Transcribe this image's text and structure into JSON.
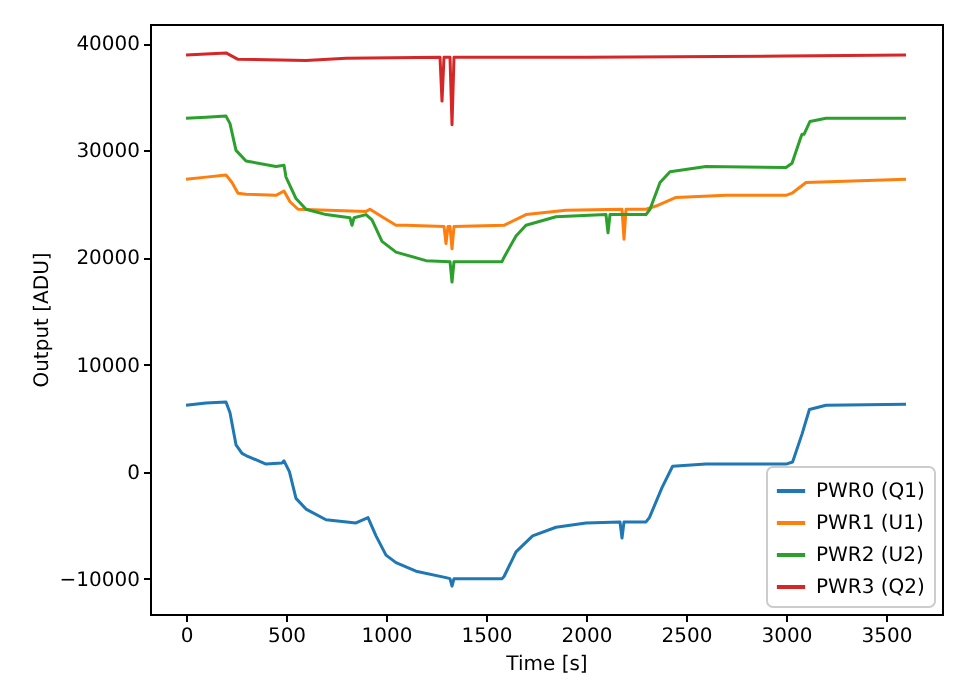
{
  "chart_data": {
    "type": "line",
    "xlabel": "Time [s]",
    "ylabel": "Output [ADU]",
    "xlim": [
      -180,
      3780
    ],
    "ylim": [
      -13300,
      41800
    ],
    "xticks": [
      0,
      500,
      1000,
      1500,
      2000,
      2500,
      3000,
      3500
    ],
    "yticks": [
      -10000,
      0,
      10000,
      20000,
      30000,
      40000
    ],
    "legend": "bottom right",
    "series": [
      {
        "name": "PWR0 (Q1)",
        "color": "#1f77b4",
        "x": [
          0,
          100,
          200,
          220,
          250,
          280,
          300,
          400,
          480,
          490,
          517,
          550,
          600,
          700,
          850,
          910,
          950,
          1000,
          1050,
          1150,
          1300,
          1320,
          1330,
          1340,
          1580,
          1590,
          1650,
          1733,
          1850,
          2000,
          2170,
          2180,
          2190,
          2300,
          2317,
          2380,
          2433,
          2600,
          3000,
          3033,
          3080,
          3117,
          3200,
          3600
        ],
        "values": [
          6200,
          6400,
          6500,
          5500,
          2500,
          1700,
          1500,
          700,
          800,
          1000,
          0,
          -2500,
          -3500,
          -4500,
          -4800,
          -4300,
          -6000,
          -7800,
          -8500,
          -9300,
          -9900,
          -10000,
          -10700,
          -10000,
          -10000,
          -9800,
          -7500,
          -6000,
          -5200,
          -4800,
          -4700,
          -6200,
          -4700,
          -4700,
          -4300,
          -1500,
          500,
          700,
          700,
          900,
          3500,
          5800,
          6200,
          6300
        ]
      },
      {
        "name": "PWR1 (U1)",
        "color": "#ff7f0e",
        "x": [
          0,
          100,
          200,
          230,
          260,
          300,
          450,
          490,
          520,
          560,
          900,
          920,
          980,
          1050,
          1100,
          1290,
          1300,
          1310,
          1320,
          1330,
          1340,
          1590,
          1700,
          1900,
          2180,
          2190,
          2200,
          2300,
          2350,
          2450,
          2700,
          3000,
          3030,
          3100,
          3600
        ],
        "values": [
          27300,
          27500,
          27700,
          27000,
          26000,
          25900,
          25800,
          26200,
          25200,
          24500,
          24300,
          24500,
          23800,
          23000,
          23000,
          22900,
          21300,
          22900,
          22900,
          20800,
          22900,
          23000,
          24000,
          24400,
          24500,
          21700,
          24500,
          24500,
          24800,
          25600,
          25800,
          25800,
          26000,
          27000,
          27300
        ]
      },
      {
        "name": "PWR2 (U2)",
        "color": "#2ca02c",
        "x": [
          0,
          100,
          200,
          220,
          250,
          300,
          450,
          490,
          500,
          550,
          600,
          700,
          820,
          830,
          840,
          900,
          930,
          980,
          1050,
          1200,
          1320,
          1330,
          1340,
          1580,
          1590,
          1650,
          1700,
          1850,
          2100,
          2110,
          2120,
          2300,
          2320,
          2370,
          2420,
          2600,
          3000,
          3030,
          3070,
          3080,
          3090,
          3120,
          3200,
          3600
        ],
        "values": [
          33000,
          33100,
          33200,
          32500,
          30000,
          29000,
          28500,
          28600,
          27500,
          25500,
          24500,
          24000,
          23700,
          23000,
          23700,
          24000,
          23500,
          21500,
          20500,
          19700,
          19600,
          17700,
          19600,
          19600,
          20000,
          22000,
          23000,
          23800,
          24000,
          22300,
          24000,
          24000,
          24500,
          27000,
          28000,
          28500,
          28400,
          28800,
          31000,
          31500,
          31500,
          32700,
          33000,
          33000
        ]
      },
      {
        "name": "PWR3 (Q2)",
        "color": "#d62728",
        "x": [
          0,
          100,
          200,
          230,
          260,
          600,
          800,
          1270,
          1280,
          1290,
          1320,
          1330,
          1340,
          2000,
          3000,
          3600
        ],
        "values": [
          38900,
          39000,
          39100,
          38800,
          38500,
          38400,
          38600,
          38700,
          34600,
          38700,
          38700,
          32400,
          38700,
          38700,
          38800,
          38900
        ]
      }
    ]
  }
}
